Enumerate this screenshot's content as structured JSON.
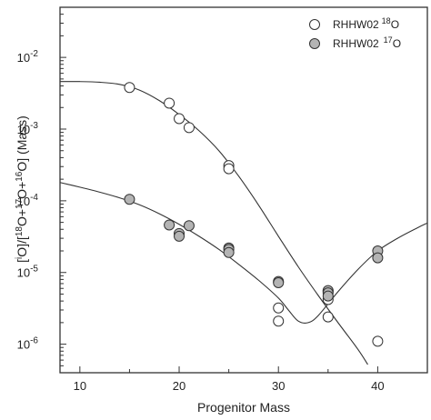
{
  "chart_data": {
    "type": "scatter",
    "title": "",
    "xlabel": "Progenitor Mass",
    "ylabel_parts": [
      "[",
      "O]/[",
      "O+",
      "O+",
      "O] (Mass)"
    ],
    "ylabel_sup": [
      "i",
      "18",
      "17",
      "16"
    ],
    "xlim": [
      8,
      45
    ],
    "ylim": [
      4e-07,
      0.05
    ],
    "yscale": "log",
    "grid": false,
    "legend_position": "top-right",
    "x_ticks": [
      10,
      20,
      30,
      40
    ],
    "x_tick_labels": [
      "10",
      "20",
      "30",
      "40"
    ],
    "y_ticks": [
      1e-06,
      1e-05,
      0.0001,
      0.001,
      0.01
    ],
    "y_tick_base": "10",
    "y_tick_exps": [
      "-6",
      "-5",
      "-4",
      "-3",
      "-2"
    ],
    "series": [
      {
        "name": "RHHW02",
        "name_sup": "18",
        "name_suffix": "O",
        "marker": "open-circle",
        "color": "#ffffff",
        "points": [
          [
            15,
            0.0038
          ],
          [
            19,
            0.0023
          ],
          [
            20,
            0.0014
          ],
          [
            21,
            0.00105
          ],
          [
            25,
            0.00031
          ],
          [
            25,
            0.00028
          ],
          [
            30,
            3.2e-06
          ],
          [
            30,
            2.1e-06
          ],
          [
            35,
            5.5e-06
          ],
          [
            35,
            4.2e-06
          ],
          [
            35,
            2.4e-06
          ],
          [
            40,
            1.1e-06
          ]
        ],
        "fit_curve": [
          [
            8,
            0.0046
          ],
          [
            10,
            0.0046
          ],
          [
            12,
            0.0045
          ],
          [
            14,
            0.0042
          ],
          [
            16,
            0.0035
          ],
          [
            18,
            0.0025
          ],
          [
            20,
            0.0016
          ],
          [
            22,
            0.00095
          ],
          [
            24,
            0.0005
          ],
          [
            26,
            0.00022
          ],
          [
            28,
            8.7e-05
          ],
          [
            30,
            3.2e-05
          ],
          [
            32,
            1.2e-05
          ],
          [
            34,
            4.8e-06
          ],
          [
            36,
            2e-06
          ],
          [
            38,
            8.5e-07
          ],
          [
            39,
            5.2e-07
          ]
        ]
      },
      {
        "name": "RHHW02",
        "name_sup": "17",
        "name_suffix": "O",
        "marker": "filled-circle",
        "color": "#b4b4b4",
        "points": [
          [
            15,
            0.000105
          ],
          [
            19,
            4.6e-05
          ],
          [
            20,
            3.5e-05
          ],
          [
            20,
            3.2e-05
          ],
          [
            21,
            4.5e-05
          ],
          [
            25,
            2.2e-05
          ],
          [
            25,
            2.1e-05
          ],
          [
            25,
            1.9e-05
          ],
          [
            30,
            7.5e-06
          ],
          [
            30,
            7.2e-06
          ],
          [
            35,
            5.6e-06
          ],
          [
            35,
            5.2e-06
          ],
          [
            35,
            4.7e-06
          ],
          [
            40,
            2e-05
          ],
          [
            40,
            1.6e-05
          ]
        ],
        "fit_curve": [
          [
            8,
            0.00018
          ],
          [
            10,
            0.000155
          ],
          [
            12,
            0.000132
          ],
          [
            14,
            0.00011
          ],
          [
            16,
            8.8e-05
          ],
          [
            18,
            6.6e-05
          ],
          [
            20,
            4.7e-05
          ],
          [
            22,
            3.2e-05
          ],
          [
            24,
            2.1e-05
          ],
          [
            26,
            1.3e-05
          ],
          [
            28,
            7.8e-06
          ],
          [
            30,
            4.4e-06
          ],
          [
            31,
            3e-06
          ],
          [
            32,
            2.1e-06
          ],
          [
            33,
            2e-06
          ],
          [
            34,
            2.5e-06
          ],
          [
            36,
            5.4e-06
          ],
          [
            38,
            1.1e-05
          ],
          [
            40,
            2e-05
          ],
          [
            42,
            3e-05
          ],
          [
            44,
            4.2e-05
          ],
          [
            45,
            4.9e-05
          ]
        ]
      }
    ]
  }
}
